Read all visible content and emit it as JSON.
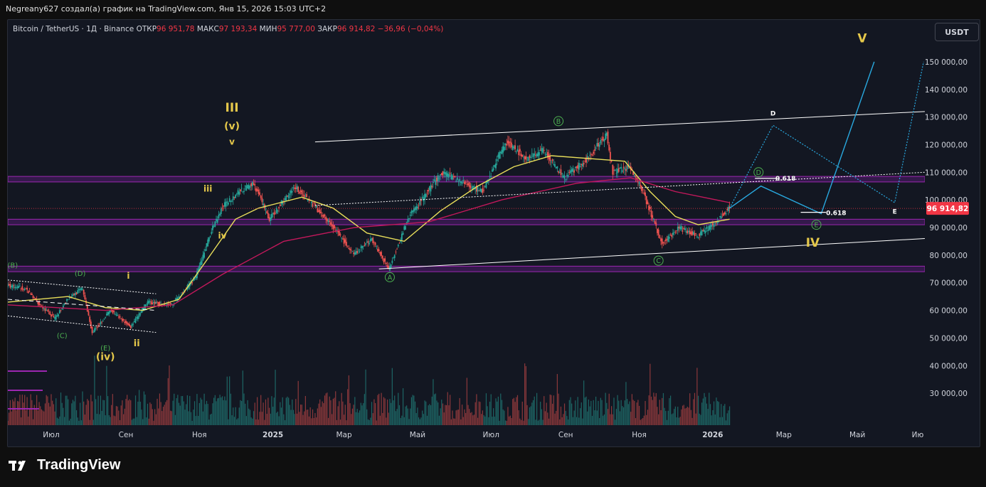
{
  "header": {
    "attribution": "Negreany627 создал(а) график на TradingView.com, Янв 15, 2026 15:03 UTC+2"
  },
  "legend": {
    "symbol": "Bitcoin / TetherUS · 1Д · Binance",
    "open_label": "ОТКР",
    "open_value": "96 951,78",
    "high_label": "МАКС",
    "high_value": "97 193,34",
    "low_label": "МИН",
    "low_value": "95 777,00",
    "close_label": "ЗАКР",
    "close_value": "96 914,82",
    "change": "−36,96 (−0,04%)"
  },
  "currency_button": "USDT",
  "footer": {
    "brand": "TradingView",
    "logo_icon": "tradingview-logo-icon"
  },
  "colors": {
    "up": "#26a69a",
    "down": "#ef5350",
    "ma_fast": "#e8de5a",
    "ma_slow": "#c2185b",
    "zone": "#7b1fa2",
    "wave_major": "#e5c84a",
    "wave_minor": "#4caf50",
    "projection": "#29a9e0",
    "price_label_bg": "#f23645"
  },
  "chart_data": {
    "type": "line",
    "title": "",
    "x_labels": [
      "Июл",
      "Сен",
      "Ноя",
      "2025",
      "Мар",
      "Май",
      "Июл",
      "Сен",
      "Ноя",
      "2026",
      "Мар",
      "Май",
      "Ию"
    ],
    "y_ticks": [
      30000,
      40000,
      50000,
      60000,
      70000,
      80000,
      90000,
      100000,
      110000,
      120000,
      130000,
      140000,
      150000
    ],
    "y_tick_labels": [
      "30 000,00",
      "40 000,00",
      "50 000,00",
      "60 000,00",
      "70 000,00",
      "80 000,00",
      "90 000,00",
      "100 000,00",
      "110 000,00",
      "120 000,00",
      "130 000,00",
      "140 000,00",
      "150 000,00"
    ],
    "ylim": [
      20000,
      158000
    ],
    "current_price": 96914.82,
    "current_price_label": "96 914,82",
    "series": [
      {
        "name": "",
        "kind": "price",
        "dates": [
          "2024-05-26",
          "2024-06-10",
          "2024-06-25",
          "2024-07-05",
          "2024-07-15",
          "2024-07-28",
          "2024-08-05",
          "2024-08-20",
          "2024-09-06",
          "2024-09-20",
          "2024-10-10",
          "2024-10-30",
          "2024-11-12",
          "2024-11-22",
          "2024-12-05",
          "2024-12-17",
          "2024-12-30",
          "2025-01-20",
          "2025-02-05",
          "2025-02-25",
          "2025-03-10",
          "2025-03-25",
          "2025-04-08",
          "2025-04-25",
          "2025-05-22",
          "2025-06-10",
          "2025-06-25",
          "2025-07-14",
          "2025-08-01",
          "2025-08-14",
          "2025-09-01",
          "2025-09-20",
          "2025-10-06",
          "2025-10-11",
          "2025-10-25",
          "2025-11-05",
          "2025-11-21",
          "2025-12-05",
          "2025-12-20",
          "2026-01-05",
          "2026-01-15"
        ],
        "values": [
          69000,
          68000,
          61000,
          57000,
          64000,
          68000,
          52000,
          60000,
          54000,
          63000,
          62000,
          72000,
          89000,
          98000,
          103000,
          106000,
          93000,
          105000,
          98000,
          88000,
          80000,
          86000,
          75000,
          94000,
          110000,
          106000,
          103000,
          121000,
          115000,
          118000,
          108000,
          115000,
          124000,
          110000,
          112000,
          103000,
          84000,
          90000,
          87000,
          92000,
          96914.82
        ]
      },
      {
        "name": "",
        "kind": "moving-average-fast",
        "dates": [
          "2024-05-26",
          "2024-07-15",
          "2024-08-15",
          "2024-09-15",
          "2024-10-15",
          "2024-11-10",
          "2024-12-01",
          "2024-12-20",
          "2025-01-25",
          "2025-02-20",
          "2025-03-20",
          "2025-04-20",
          "2025-05-20",
          "2025-06-20",
          "2025-07-20",
          "2025-08-20",
          "2025-09-20",
          "2025-10-20",
          "2025-11-10",
          "2025-12-01",
          "2025-12-20",
          "2026-01-15"
        ],
        "values": [
          63000,
          65000,
          61000,
          60000,
          64000,
          80000,
          93000,
          97000,
          101000,
          97000,
          88000,
          85000,
          96000,
          105000,
          112000,
          116000,
          115000,
          114000,
          103000,
          94000,
          91000,
          93000
        ]
      },
      {
        "name": "",
        "kind": "moving-average-slow",
        "dates": [
          "2024-05-26",
          "2024-08-15",
          "2024-10-10",
          "2024-11-20",
          "2025-01-10",
          "2025-03-10",
          "2025-05-10",
          "2025-07-10",
          "2025-09-10",
          "2025-10-25",
          "2025-12-01",
          "2026-01-15"
        ],
        "values": [
          62000,
          60000,
          62000,
          73000,
          85000,
          90000,
          92000,
          100000,
          106000,
          108000,
          103000,
          99000
        ]
      }
    ],
    "horizontal_zones": [
      [
        106500,
        108500
      ],
      [
        91000,
        93000
      ],
      [
        74000,
        76000
      ]
    ],
    "annotations": [
      "(B)",
      "(D)",
      "(C)",
      "(E)",
      "(iv)",
      "i",
      "ii",
      "iii",
      "iv",
      "v",
      "(v)",
      "III",
      "B",
      "A",
      "C",
      "D",
      "E",
      "IV",
      "V",
      "0.618",
      "0.618",
      "D",
      "E"
    ]
  }
}
